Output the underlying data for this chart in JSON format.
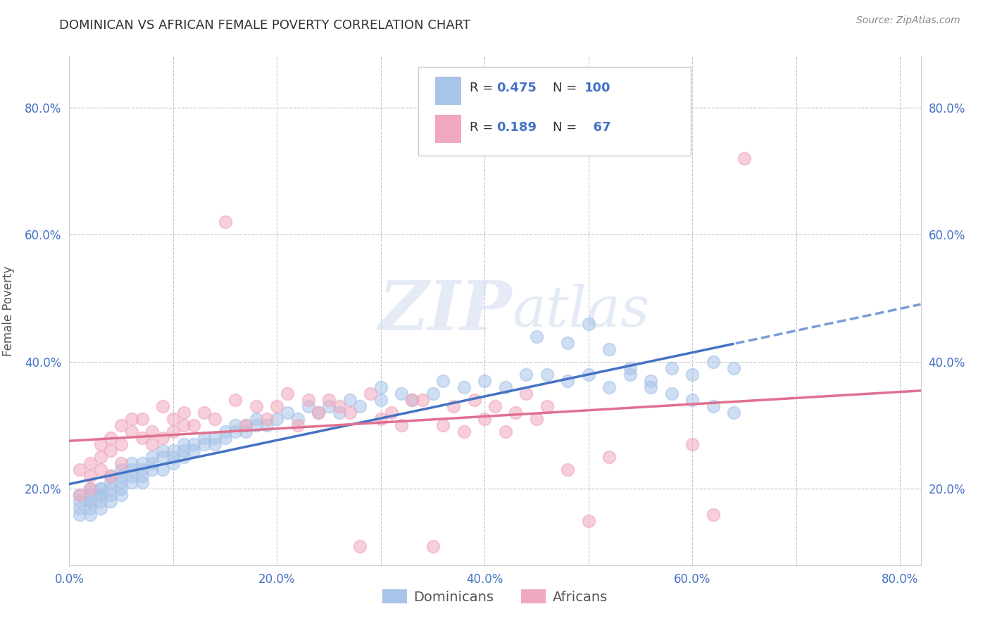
{
  "title": "DOMINICAN VS AFRICAN FEMALE POVERTY CORRELATION CHART",
  "source": "Source: ZipAtlas.com",
  "ylabel": "Female Poverty",
  "xlim": [
    0.0,
    0.82
  ],
  "ylim": [
    0.08,
    0.88
  ],
  "xtick_labels": [
    "0.0%",
    "",
    "20.0%",
    "",
    "40.0%",
    "",
    "60.0%",
    "",
    "80.0%"
  ],
  "xtick_vals": [
    0.0,
    0.1,
    0.2,
    0.3,
    0.4,
    0.5,
    0.6,
    0.7,
    0.8
  ],
  "ytick_labels": [
    "20.0%",
    "40.0%",
    "60.0%",
    "80.0%"
  ],
  "ytick_vals": [
    0.2,
    0.4,
    0.6,
    0.8
  ],
  "background_color": "#ffffff",
  "grid_color": "#c8c8c8",
  "dominican_color": "#a8c4e8",
  "african_color": "#f0a8be",
  "trend_dominican_color": "#4472c4",
  "trend_african_color": "#e07090",
  "R_dominican": 0.475,
  "N_dominican": 100,
  "R_african": 0.189,
  "N_african": 67,
  "watermark_zip": "ZIP",
  "watermark_atlas": "atlas",
  "legend_labels": [
    "Dominicans",
    "Africans"
  ],
  "dominican_x": [
    0.01,
    0.01,
    0.01,
    0.01,
    0.02,
    0.02,
    0.02,
    0.02,
    0.02,
    0.02,
    0.03,
    0.03,
    0.03,
    0.03,
    0.03,
    0.03,
    0.04,
    0.04,
    0.04,
    0.04,
    0.04,
    0.05,
    0.05,
    0.05,
    0.05,
    0.05,
    0.06,
    0.06,
    0.06,
    0.06,
    0.07,
    0.07,
    0.07,
    0.07,
    0.08,
    0.08,
    0.08,
    0.09,
    0.09,
    0.09,
    0.1,
    0.1,
    0.1,
    0.11,
    0.11,
    0.11,
    0.12,
    0.12,
    0.13,
    0.13,
    0.14,
    0.14,
    0.15,
    0.15,
    0.16,
    0.16,
    0.17,
    0.17,
    0.18,
    0.18,
    0.19,
    0.2,
    0.21,
    0.22,
    0.23,
    0.24,
    0.25,
    0.26,
    0.27,
    0.28,
    0.3,
    0.3,
    0.32,
    0.33,
    0.35,
    0.36,
    0.38,
    0.4,
    0.42,
    0.44,
    0.46,
    0.48,
    0.5,
    0.52,
    0.54,
    0.56,
    0.58,
    0.6,
    0.62,
    0.64,
    0.45,
    0.48,
    0.5,
    0.52,
    0.54,
    0.56,
    0.58,
    0.6,
    0.62,
    0.64
  ],
  "dominican_y": [
    0.17,
    0.18,
    0.19,
    0.16,
    0.18,
    0.19,
    0.2,
    0.17,
    0.18,
    0.16,
    0.19,
    0.2,
    0.18,
    0.19,
    0.17,
    0.2,
    0.2,
    0.21,
    0.19,
    0.22,
    0.18,
    0.22,
    0.21,
    0.2,
    0.23,
    0.19,
    0.23,
    0.22,
    0.24,
    0.21,
    0.23,
    0.22,
    0.24,
    0.21,
    0.25,
    0.23,
    0.24,
    0.25,
    0.23,
    0.26,
    0.25,
    0.24,
    0.26,
    0.26,
    0.25,
    0.27,
    0.27,
    0.26,
    0.28,
    0.27,
    0.28,
    0.27,
    0.29,
    0.28,
    0.29,
    0.3,
    0.3,
    0.29,
    0.31,
    0.3,
    0.3,
    0.31,
    0.32,
    0.31,
    0.33,
    0.32,
    0.33,
    0.32,
    0.34,
    0.33,
    0.34,
    0.36,
    0.35,
    0.34,
    0.35,
    0.37,
    0.36,
    0.37,
    0.36,
    0.38,
    0.38,
    0.37,
    0.38,
    0.36,
    0.39,
    0.37,
    0.39,
    0.38,
    0.4,
    0.39,
    0.44,
    0.43,
    0.46,
    0.42,
    0.38,
    0.36,
    0.35,
    0.34,
    0.33,
    0.32
  ],
  "african_x": [
    0.01,
    0.01,
    0.02,
    0.02,
    0.02,
    0.03,
    0.03,
    0.03,
    0.04,
    0.04,
    0.04,
    0.05,
    0.05,
    0.05,
    0.06,
    0.06,
    0.07,
    0.07,
    0.08,
    0.08,
    0.09,
    0.09,
    0.1,
    0.1,
    0.11,
    0.11,
    0.12,
    0.13,
    0.14,
    0.15,
    0.16,
    0.17,
    0.18,
    0.19,
    0.2,
    0.21,
    0.22,
    0.23,
    0.24,
    0.25,
    0.26,
    0.27,
    0.28,
    0.29,
    0.3,
    0.31,
    0.32,
    0.33,
    0.34,
    0.35,
    0.36,
    0.37,
    0.38,
    0.39,
    0.4,
    0.41,
    0.42,
    0.43,
    0.44,
    0.45,
    0.46,
    0.48,
    0.5,
    0.52,
    0.6,
    0.62,
    0.65
  ],
  "african_y": [
    0.19,
    0.23,
    0.2,
    0.24,
    0.22,
    0.25,
    0.23,
    0.27,
    0.26,
    0.28,
    0.22,
    0.27,
    0.3,
    0.24,
    0.29,
    0.31,
    0.28,
    0.31,
    0.27,
    0.29,
    0.28,
    0.33,
    0.29,
    0.31,
    0.3,
    0.32,
    0.3,
    0.32,
    0.31,
    0.62,
    0.34,
    0.3,
    0.33,
    0.31,
    0.33,
    0.35,
    0.3,
    0.34,
    0.32,
    0.34,
    0.33,
    0.32,
    0.11,
    0.35,
    0.31,
    0.32,
    0.3,
    0.34,
    0.34,
    0.11,
    0.3,
    0.33,
    0.29,
    0.34,
    0.31,
    0.33,
    0.29,
    0.32,
    0.35,
    0.31,
    0.33,
    0.23,
    0.15,
    0.25,
    0.27,
    0.16,
    0.72
  ]
}
